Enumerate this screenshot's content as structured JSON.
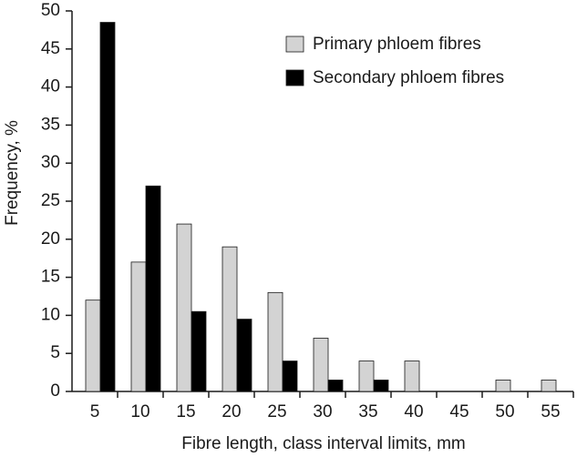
{
  "chart_data": {
    "type": "bar",
    "x_label": "Fibre length, class interval limits, mm",
    "y_label": "Frequency, %",
    "categories": [
      "5",
      "10",
      "15",
      "20",
      "25",
      "30",
      "35",
      "40",
      "45",
      "50",
      "55"
    ],
    "series": [
      {
        "name": "Primary phloem fibres",
        "color": "#d3d3d3",
        "values": [
          12,
          17,
          22,
          19,
          13,
          7,
          4,
          4,
          0,
          1.5,
          1.5
        ]
      },
      {
        "name": "Secondary phloem fibres",
        "color": "#000000",
        "values": [
          48.5,
          27,
          10.5,
          9.5,
          4,
          1.5,
          1.5,
          0,
          0,
          0,
          0
        ]
      }
    ],
    "ylim": [
      0,
      50
    ],
    "yticks": [
      0,
      5,
      10,
      15,
      20,
      25,
      30,
      35,
      40,
      45,
      50
    ],
    "grid": false,
    "legend": "top-right"
  }
}
